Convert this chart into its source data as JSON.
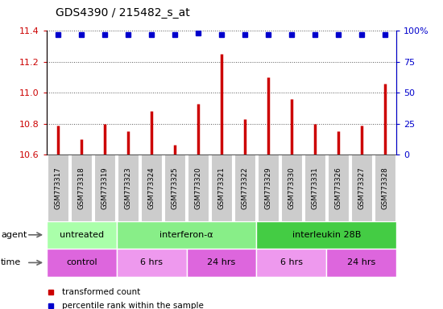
{
  "title": "GDS4390 / 215482_s_at",
  "samples": [
    "GSM773317",
    "GSM773318",
    "GSM773319",
    "GSM773323",
    "GSM773324",
    "GSM773325",
    "GSM773320",
    "GSM773321",
    "GSM773322",
    "GSM773329",
    "GSM773330",
    "GSM773331",
    "GSM773326",
    "GSM773327",
    "GSM773328"
  ],
  "transformed_counts": [
    10.79,
    10.7,
    10.8,
    10.75,
    10.88,
    10.66,
    10.93,
    11.25,
    10.83,
    11.1,
    10.96,
    10.8,
    10.75,
    10.79,
    11.06
  ],
  "percentile_ranks": [
    97,
    97,
    97,
    97,
    97,
    97,
    98,
    97,
    97,
    97,
    97,
    97,
    97,
    97,
    97
  ],
  "ylim_left": [
    10.6,
    11.4
  ],
  "yticks_left": [
    10.6,
    10.8,
    11.0,
    11.2,
    11.4
  ],
  "ylim_right": [
    0,
    100
  ],
  "yticks_right": [
    0,
    25,
    50,
    75,
    100
  ],
  "yticklabels_right": [
    "0",
    "25",
    "50",
    "75",
    "100%"
  ],
  "bar_color": "#cc0000",
  "dot_color": "#0000cc",
  "left_tick_color": "#cc0000",
  "right_tick_color": "#0000cc",
  "agent_groups": [
    {
      "label": "untreated",
      "start": 0,
      "end": 3,
      "color": "#aaffaa"
    },
    {
      "label": "interferon-α",
      "start": 3,
      "end": 9,
      "color": "#88ee88"
    },
    {
      "label": "interleukin 28B",
      "start": 9,
      "end": 15,
      "color": "#44cc44"
    }
  ],
  "time_groups": [
    {
      "label": "control",
      "start": 0,
      "end": 3,
      "color": "#dd66dd"
    },
    {
      "label": "6 hrs",
      "start": 3,
      "end": 6,
      "color": "#ee99ee"
    },
    {
      "label": "24 hrs",
      "start": 6,
      "end": 9,
      "color": "#dd66dd"
    },
    {
      "label": "6 hrs",
      "start": 9,
      "end": 12,
      "color": "#ee99ee"
    },
    {
      "label": "24 hrs",
      "start": 12,
      "end": 15,
      "color": "#dd66dd"
    }
  ],
  "legend_items": [
    {
      "color": "#cc0000",
      "label": "transformed count"
    },
    {
      "color": "#0000cc",
      "label": "percentile rank within the sample"
    }
  ],
  "dotted_line_color": "#555555",
  "background_color": "#ffffff",
  "xticklabel_bg": "#cccccc"
}
